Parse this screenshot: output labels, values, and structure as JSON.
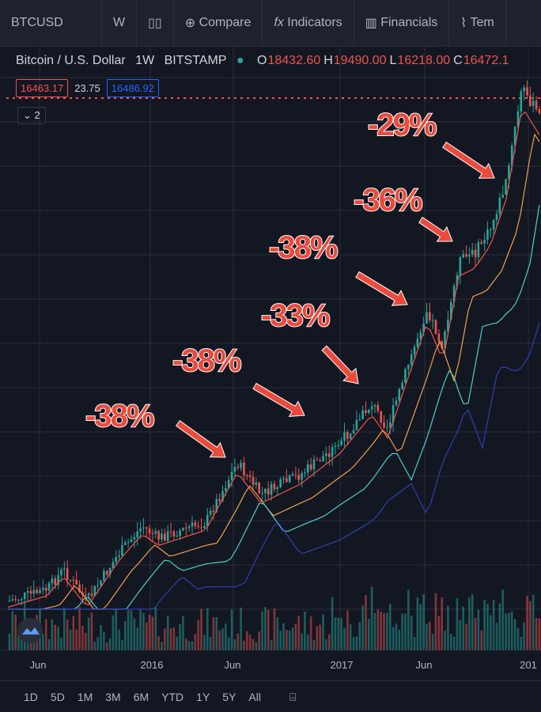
{
  "toolbar": {
    "symbol": "BTCUSD",
    "interval": "W",
    "buttons": [
      "Compare",
      "Indicators",
      "Financials",
      "Tem"
    ]
  },
  "legend": {
    "name": "Bitcoin / U.S. Dollar",
    "interval": "1W",
    "exchange": "BITSTAMP",
    "ohlc": [
      {
        "label": "O",
        "value": "18432.60"
      },
      {
        "label": "H",
        "value": "19490.00"
      },
      {
        "label": "L",
        "value": "16218.00"
      },
      {
        "label": "C",
        "value": "16472.1"
      }
    ]
  },
  "prices": {
    "bid": "16463.17",
    "spread": "23.75",
    "ask": "16486.92"
  },
  "indicator_count": "2",
  "annotations": [
    "-38%",
    "-38%",
    "-33%",
    "-38%",
    "-36%",
    "-29%"
  ],
  "x_axis": [
    "Jun",
    "2016",
    "Jun",
    "2017",
    "Jun",
    "201"
  ],
  "timeframes": [
    "1D",
    "5D",
    "1M",
    "3M",
    "6M",
    "YTD",
    "1Y",
    "5Y",
    "All"
  ]
}
